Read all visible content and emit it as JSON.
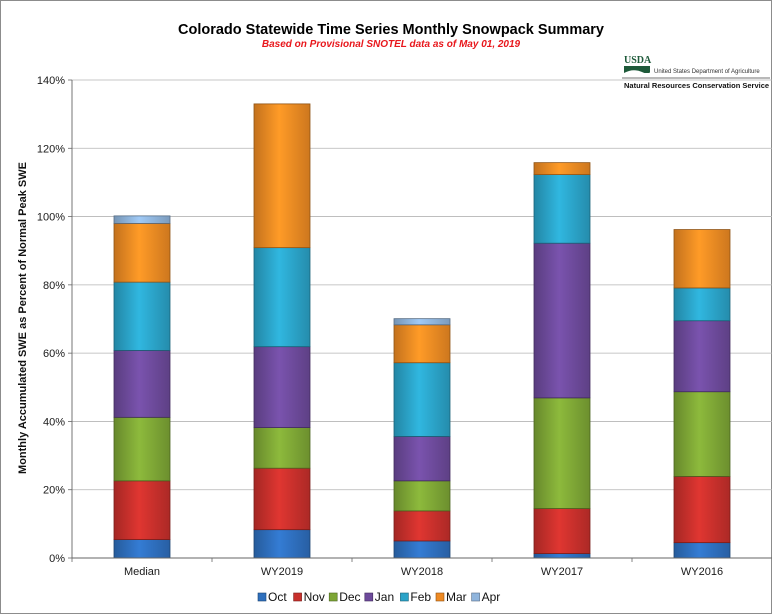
{
  "header": {
    "title": "Colorado Statewide Time Series Monthly Snowpack Summary",
    "subtitle": "Based on Provisional SNOTEL data as of May 01, 2019"
  },
  "logo": {
    "name": "USDA",
    "department": "United States Department of Agriculture",
    "agency": "Natural Resources Conservation Service"
  },
  "colors": {
    "Oct": "#2e6fbd",
    "Nov": "#c8302c",
    "Dec": "#7ea636",
    "Jan": "#6d4a9b",
    "Feb": "#2ba3c8",
    "Mar": "#ee8a23",
    "Apr": "#8fb4dc"
  },
  "chart_data": {
    "type": "bar",
    "stacked": true,
    "title": "Colorado Statewide Time Series Monthly Snowpack Summary",
    "subtitle": "Based on Provisional SNOTEL data as of May 01, 2019",
    "ylabel": "Monthly Accumulated SWE as Percent of Normal Peak SWE",
    "xlabel": "",
    "ylim": [
      0,
      140
    ],
    "yticks": [
      "0%",
      "20%",
      "40%",
      "60%",
      "80%",
      "100%",
      "120%",
      "140%"
    ],
    "ytick_values": [
      0,
      20,
      40,
      60,
      80,
      100,
      120,
      140
    ],
    "grid": true,
    "legend_position": "bottom",
    "categories": [
      "Median",
      "WY2019",
      "WY2018",
      "WY2017",
      "WY2016"
    ],
    "series": [
      {
        "name": "Oct",
        "values": [
          5.4,
          8.3,
          5.0,
          1.3,
          4.5
        ]
      },
      {
        "name": "Nov",
        "values": [
          17.2,
          18.0,
          8.8,
          13.2,
          19.4
        ]
      },
      {
        "name": "Dec",
        "values": [
          18.6,
          11.9,
          8.8,
          32.4,
          24.8
        ]
      },
      {
        "name": "Jan",
        "values": [
          19.6,
          23.7,
          13.0,
          45.3,
          20.8
        ]
      },
      {
        "name": "Feb",
        "values": [
          20.0,
          29.0,
          21.6,
          20.1,
          9.6
        ]
      },
      {
        "name": "Mar",
        "values": [
          17.2,
          42.1,
          11.1,
          3.5,
          17.1
        ]
      },
      {
        "name": "Apr",
        "values": [
          2.2,
          0.0,
          1.8,
          0.0,
          0.0
        ]
      }
    ]
  }
}
